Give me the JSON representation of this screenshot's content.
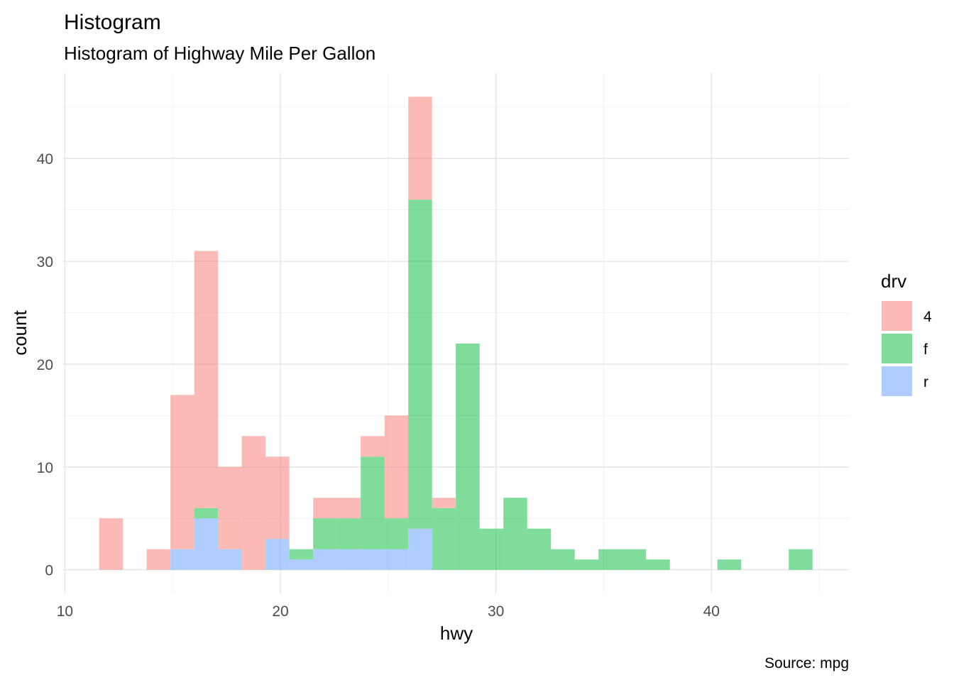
{
  "chart_data": {
    "type": "bar",
    "stacked": true,
    "title": "Histogram",
    "subtitle": "Histogram of Highway Mile Per Gallon",
    "caption": "Source: mpg",
    "xlabel": "hwy",
    "ylabel": "count",
    "xlim": [
      9.92,
      46.38
    ],
    "ylim": [
      -2.3,
      48.3
    ],
    "x_ticks": [
      10,
      20,
      30,
      40
    ],
    "y_ticks": [
      0,
      10,
      20,
      30,
      40
    ],
    "grid": true,
    "bin_first_center": 12.14,
    "bin_width": 1.1034,
    "legend": {
      "title": "drv",
      "position": "right"
    },
    "series": [
      {
        "name": "4",
        "color": "#F8766D",
        "values": [
          5,
          0,
          2,
          15,
          25,
          8,
          13,
          8,
          0,
          2,
          2,
          2,
          10,
          10,
          1,
          0,
          0,
          0,
          0,
          0,
          0,
          0,
          0,
          0,
          0,
          0,
          0,
          0,
          0,
          0
        ]
      },
      {
        "name": "f",
        "color": "#00BA38",
        "values": [
          0,
          0,
          0,
          0,
          1,
          0,
          0,
          0,
          1,
          3,
          3,
          9,
          3,
          32,
          6,
          22,
          4,
          7,
          4,
          2,
          1,
          2,
          2,
          1,
          0,
          0,
          1,
          0,
          0,
          2
        ]
      },
      {
        "name": "r",
        "color": "#619CFF",
        "values": [
          0,
          0,
          0,
          2,
          5,
          2,
          0,
          3,
          1,
          2,
          2,
          2,
          2,
          4,
          0,
          0,
          0,
          0,
          0,
          0,
          0,
          0,
          0,
          0,
          0,
          0,
          0,
          0,
          0,
          0
        ]
      }
    ],
    "fill_alpha": 0.5
  }
}
